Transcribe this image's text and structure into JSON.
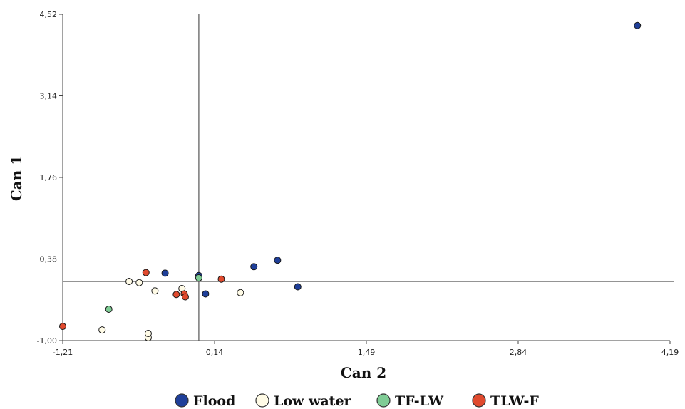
{
  "chart_data": {
    "type": "scatter",
    "xlabel": "Can 2",
    "ylabel": "Can 1",
    "xlim": [
      -1.21,
      4.19
    ],
    "ylim": [
      -1.0,
      4.52
    ],
    "x_ticks": [
      "-1,21",
      "0,14",
      "1,49",
      "2,84",
      "4,19"
    ],
    "y_ticks": [
      "4,52",
      "3,14",
      "1,76",
      "0,38",
      "-1,00"
    ],
    "x_tick_values": [
      -1.21,
      0.14,
      1.49,
      2.84,
      4.19
    ],
    "y_tick_values": [
      4.52,
      3.14,
      1.76,
      0.38,
      -1.0
    ],
    "reference_lines": {
      "x": 0.0,
      "y": 0.0
    },
    "grid": false,
    "legend_position": "bottom",
    "series": [
      {
        "name": "Flood",
        "color": "#1f3f99",
        "points": [
          [
            -0.3,
            0.14
          ],
          [
            0.0,
            0.1
          ],
          [
            0.06,
            -0.21
          ],
          [
            0.49,
            0.25
          ],
          [
            0.7,
            0.36
          ],
          [
            0.88,
            -0.09
          ],
          [
            3.9,
            4.33
          ]
        ]
      },
      {
        "name": "Low water",
        "color": "#fffbe6",
        "points": [
          [
            -0.62,
            0.0
          ],
          [
            -0.53,
            -0.02
          ],
          [
            -0.45,
            -0.95
          ],
          [
            -0.45,
            -0.88
          ],
          [
            -0.39,
            -0.16
          ],
          [
            -0.15,
            -0.12
          ],
          [
            0.37,
            -0.19
          ],
          [
            -0.86,
            -0.82
          ]
        ]
      },
      {
        "name": "TF-LW",
        "color": "#7fcc95",
        "points": [
          [
            -0.8,
            -0.47
          ],
          [
            0.0,
            0.06
          ]
        ]
      },
      {
        "name": "TLW-F",
        "color": "#e04a2e",
        "points": [
          [
            -1.21,
            -0.76
          ],
          [
            -0.47,
            0.15
          ],
          [
            -0.2,
            -0.22
          ],
          [
            -0.13,
            -0.21
          ],
          [
            -0.12,
            -0.26
          ],
          [
            0.2,
            0.04
          ]
        ]
      }
    ]
  }
}
